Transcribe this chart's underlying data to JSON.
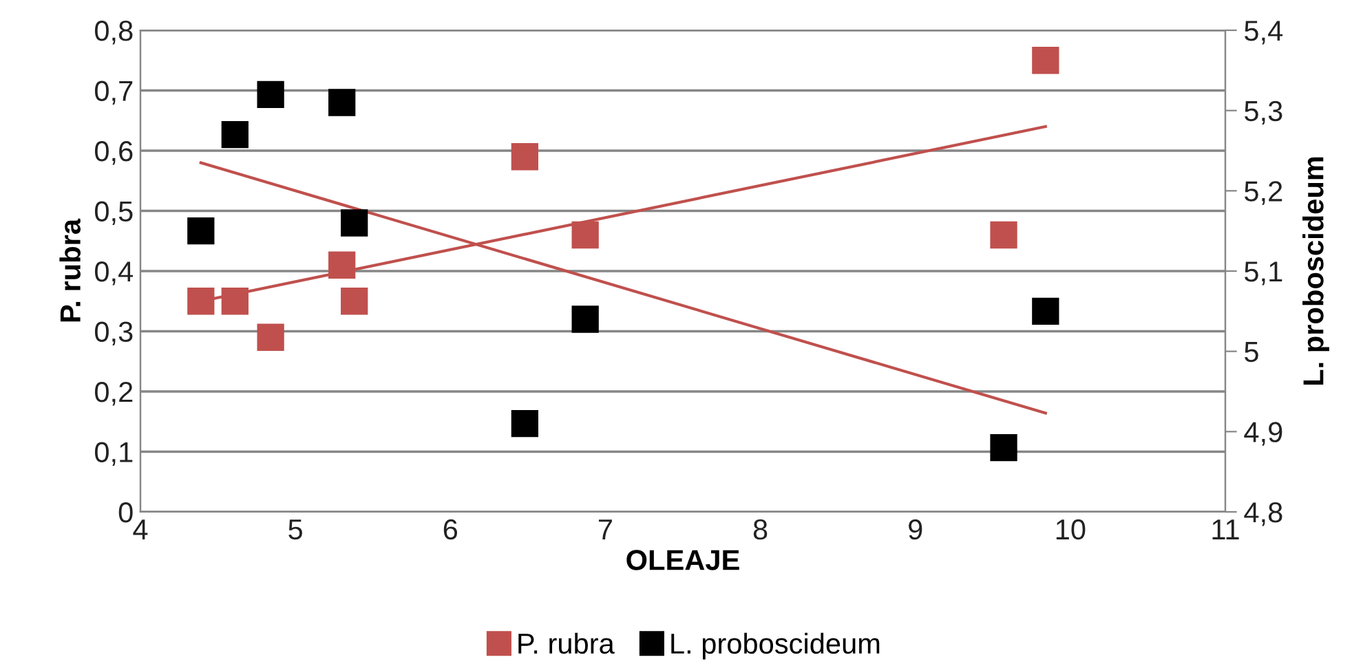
{
  "chart_data": {
    "type": "scatter",
    "xlabel": "OLEAJE",
    "ylabel": "P. rubra",
    "y2label": "L. proboscideum",
    "marker": "square",
    "grid": "y",
    "legend": "bottom",
    "xlim": [
      4,
      11
    ],
    "xticks": [
      4,
      5,
      6,
      7,
      8,
      9,
      10,
      11
    ],
    "ylim": [
      0,
      0.8
    ],
    "yticks": [
      0,
      {
        "value": 0.1,
        "label": "0,1"
      },
      {
        "value": 0.2,
        "label": "0,2"
      },
      {
        "value": 0.3,
        "label": "0,3"
      },
      {
        "value": 0.4,
        "label": "0,4"
      },
      {
        "value": 0.5,
        "label": "0,5"
      },
      {
        "value": 0.6,
        "label": "0,6"
      },
      {
        "value": 0.7,
        "label": "0,7"
      },
      {
        "value": 0.8,
        "label": "0,8"
      }
    ],
    "y2lim": [
      4.8,
      5.4
    ],
    "y2ticks": [
      {
        "value": 4.8,
        "label": "4,8"
      },
      {
        "value": 4.9,
        "label": "4,9"
      },
      5,
      {
        "value": 5.1,
        "label": "5,1"
      },
      {
        "value": 5.2,
        "label": "5,2"
      },
      {
        "value": 5.3,
        "label": "5,3"
      },
      {
        "value": 5.4,
        "label": "5,4"
      }
    ],
    "series": [
      {
        "name": "P. rubra",
        "color": "#c0504d",
        "x": [
          4.39,
          4.61,
          4.84,
          5.3,
          5.38,
          6.48,
          6.87,
          9.57,
          9.84
        ],
        "values": [
          0.35,
          0.35,
          0.29,
          0.41,
          0.35,
          0.59,
          0.46,
          0.46,
          0.75
        ]
      },
      {
        "name": "L. proboscideum",
        "color": "#000000",
        "axis": "y2",
        "x": [
          4.39,
          4.61,
          4.84,
          5.3,
          5.38,
          6.48,
          6.87,
          9.57,
          9.84
        ],
        "values": [
          5.15,
          5.27,
          5.32,
          5.31,
          5.16,
          4.91,
          5.04,
          4.88,
          5.05
        ]
      },
      {
        "type": "line",
        "color": "#c0504d",
        "marker": "none",
        "x": [
          4.39,
          9.84
        ],
        "values": [
          0.35,
          0.64
        ]
      },
      {
        "type": "line",
        "color": "#c0504d",
        "marker": "none",
        "axis": "y2",
        "x": [
          4.39,
          9.84
        ],
        "values": [
          5.235,
          4.923
        ]
      }
    ]
  }
}
